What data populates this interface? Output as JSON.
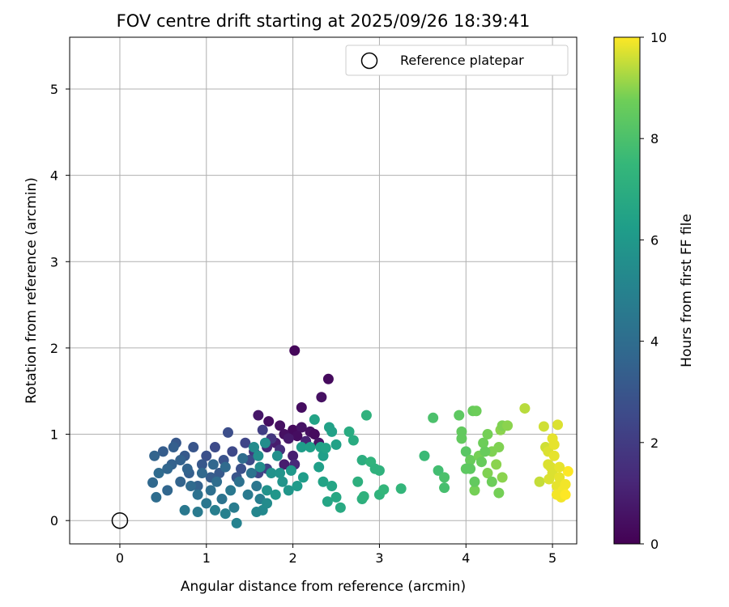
{
  "chart_data": {
    "type": "scatter",
    "title": "FOV centre drift starting at 2025/09/26 18:39:41",
    "xlabel": "Angular distance from reference (arcmin)",
    "ylabel": "Rotation from reference (arcmin)",
    "xlim": [
      -0.58,
      5.28
    ],
    "ylim": [
      -0.27,
      5.6
    ],
    "xticks": [
      0,
      1,
      2,
      3,
      4,
      5
    ],
    "yticks": [
      0,
      1,
      2,
      3,
      4,
      5
    ],
    "grid": true,
    "legend": {
      "position": "top-right",
      "label": "Reference platepar"
    },
    "reference_point": {
      "x": 0,
      "y": 0
    },
    "colorbar": {
      "label": "Hours from first FF file",
      "range": [
        0,
        10
      ],
      "ticks": [
        0,
        2,
        4,
        6,
        8,
        10
      ],
      "colormap": "viridis"
    },
    "series": [
      {
        "points": [
          [
            2.02,
            1.97
          ],
          [
            2.41,
            1.64
          ],
          [
            2.33,
            1.43
          ],
          [
            2.1,
            1.31
          ],
          [
            1.6,
            1.22
          ],
          [
            1.72,
            1.15
          ],
          [
            1.85,
            1.1
          ],
          [
            2.0,
            1.05
          ],
          [
            2.1,
            1.08
          ],
          [
            2.2,
            1.03
          ],
          [
            1.9,
            1.0
          ],
          [
            2.05,
            0.98
          ],
          [
            2.25,
            1.0
          ],
          [
            1.95,
            0.95
          ],
          [
            1.8,
            0.9
          ],
          [
            1.7,
            0.85
          ],
          [
            2.3,
            0.9
          ],
          [
            2.0,
            0.75
          ],
          [
            1.9,
            0.65
          ],
          [
            2.02,
            0.65
          ],
          [
            1.75,
            0.95
          ],
          [
            1.85,
            0.82
          ],
          [
            1.65,
            1.05
          ],
          [
            2.15,
            0.92
          ],
          [
            1.55,
            0.8
          ],
          [
            1.6,
            0.55
          ],
          [
            1.5,
            0.7
          ],
          [
            1.7,
            0.6
          ],
          [
            1.45,
            0.9
          ],
          [
            1.4,
            0.6
          ],
          [
            1.3,
            0.8
          ],
          [
            1.35,
            0.5
          ],
          [
            1.25,
            1.02
          ],
          [
            1.2,
            0.7
          ],
          [
            1.1,
            0.85
          ],
          [
            1.15,
            0.55
          ],
          [
            1.0,
            0.75
          ],
          [
            1.05,
            0.5
          ],
          [
            0.95,
            0.65
          ],
          [
            0.9,
            0.4
          ],
          [
            0.85,
            0.85
          ],
          [
            0.8,
            0.55
          ],
          [
            0.75,
            0.75
          ],
          [
            0.7,
            0.45
          ],
          [
            0.65,
            0.9
          ],
          [
            0.6,
            0.65
          ],
          [
            0.55,
            0.35
          ],
          [
            0.5,
            0.8
          ],
          [
            0.45,
            0.55
          ],
          [
            0.4,
            0.75
          ],
          [
            0.38,
            0.44
          ],
          [
            0.42,
            0.27
          ],
          [
            0.55,
            0.6
          ],
          [
            0.62,
            0.85
          ],
          [
            0.7,
            0.7
          ],
          [
            0.78,
            0.6
          ],
          [
            0.82,
            0.4
          ],
          [
            0.9,
            0.3
          ],
          [
            0.95,
            0.55
          ],
          [
            1.0,
            0.2
          ],
          [
            1.05,
            0.35
          ],
          [
            1.08,
            0.65
          ],
          [
            1.12,
            0.45
          ],
          [
            1.18,
            0.25
          ],
          [
            1.22,
            0.62
          ],
          [
            1.28,
            0.35
          ],
          [
            1.32,
            0.15
          ],
          [
            1.38,
            0.45
          ],
          [
            1.42,
            0.72
          ],
          [
            1.48,
            0.3
          ],
          [
            1.52,
            0.55
          ],
          [
            1.58,
            0.4
          ],
          [
            1.62,
            0.25
          ],
          [
            0.75,
            0.12
          ],
          [
            0.9,
            0.1
          ],
          [
            1.1,
            0.12
          ],
          [
            1.22,
            0.08
          ],
          [
            1.35,
            -0.03
          ],
          [
            1.55,
            0.85
          ],
          [
            1.6,
            0.75
          ],
          [
            1.68,
            0.9
          ],
          [
            1.75,
            0.55
          ],
          [
            1.82,
            0.75
          ],
          [
            1.88,
            0.45
          ],
          [
            1.95,
            0.35
          ],
          [
            1.62,
            0.62
          ],
          [
            1.7,
            0.35
          ],
          [
            1.8,
            0.3
          ],
          [
            1.85,
            0.55
          ],
          [
            1.65,
            0.12
          ],
          [
            1.58,
            0.1
          ],
          [
            1.7,
            0.2
          ],
          [
            1.98,
            0.58
          ],
          [
            2.05,
            0.4
          ],
          [
            2.12,
            0.5
          ],
          [
            2.1,
            0.85
          ],
          [
            2.2,
            0.85
          ],
          [
            2.25,
            1.17
          ],
          [
            2.3,
            0.62
          ],
          [
            2.32,
            0.85
          ],
          [
            2.35,
            0.75
          ],
          [
            2.38,
            0.84
          ],
          [
            2.42,
            1.08
          ],
          [
            2.45,
            1.03
          ],
          [
            2.5,
            0.88
          ],
          [
            2.35,
            0.45
          ],
          [
            2.4,
            0.22
          ],
          [
            2.45,
            0.4
          ],
          [
            2.5,
            0.27
          ],
          [
            2.55,
            0.15
          ],
          [
            2.65,
            1.03
          ],
          [
            2.7,
            0.93
          ],
          [
            2.8,
            0.7
          ],
          [
            2.75,
            0.45
          ],
          [
            2.8,
            0.25
          ],
          [
            2.82,
            0.28
          ],
          [
            2.85,
            1.22
          ],
          [
            2.9,
            0.68
          ],
          [
            2.95,
            0.6
          ],
          [
            3.0,
            0.58
          ],
          [
            3.0,
            0.3
          ],
          [
            3.05,
            0.36
          ],
          [
            3.25,
            0.37
          ],
          [
            3.52,
            0.75
          ],
          [
            3.62,
            1.19
          ],
          [
            3.68,
            0.58
          ],
          [
            3.75,
            0.5
          ],
          [
            3.75,
            0.38
          ],
          [
            3.92,
            1.22
          ],
          [
            3.95,
            1.03
          ],
          [
            3.95,
            0.95
          ],
          [
            4.0,
            0.8
          ],
          [
            4.05,
            0.7
          ],
          [
            4.05,
            0.6
          ],
          [
            4.08,
            1.27
          ],
          [
            4.12,
            1.27
          ],
          [
            4.1,
            0.35
          ],
          [
            4.15,
            0.75
          ],
          [
            4.2,
            0.9
          ],
          [
            4.25,
            1.0
          ],
          [
            4.25,
            0.55
          ],
          [
            4.3,
            0.8
          ],
          [
            4.35,
            0.65
          ],
          [
            4.38,
            0.85
          ],
          [
            4.38,
            0.32
          ],
          [
            4.4,
            1.05
          ],
          [
            4.42,
            1.1
          ],
          [
            4.42,
            0.5
          ],
          [
            4.48,
            1.1
          ],
          [
            4.3,
            0.45
          ],
          [
            4.18,
            0.68
          ],
          [
            4.1,
            0.45
          ],
          [
            4.0,
            0.6
          ],
          [
            4.22,
            0.8
          ],
          [
            4.68,
            1.3
          ],
          [
            4.85,
            0.45
          ],
          [
            4.9,
            1.09
          ],
          [
            4.92,
            0.85
          ],
          [
            4.95,
            0.8
          ],
          [
            4.95,
            0.65
          ],
          [
            5.0,
            0.95
          ],
          [
            5.0,
            0.55
          ],
          [
            5.02,
            0.75
          ],
          [
            5.05,
            0.4
          ],
          [
            5.05,
            0.3
          ],
          [
            5.06,
            1.11
          ],
          [
            5.08,
            0.5
          ],
          [
            5.1,
            0.27
          ],
          [
            5.12,
            0.35
          ],
          [
            5.15,
            0.3
          ],
          [
            5.15,
            0.42
          ],
          [
            5.18,
            0.57
          ],
          [
            4.98,
            0.62
          ],
          [
            5.02,
            0.88
          ],
          [
            5.08,
            0.62
          ],
          [
            4.96,
            0.48
          ]
        ],
        "colors": [
          0.2,
          0.3,
          0.5,
          0.4,
          0.7,
          0.4,
          0.5,
          0.3,
          0.6,
          0.5,
          0.5,
          0.4,
          0.3,
          0.8,
          0.9,
          1.2,
          0.6,
          1.0,
          0.9,
          1.3,
          1.8,
          1.5,
          2.1,
          1.1,
          1.9,
          2.3,
          2.6,
          2.2,
          2.4,
          2.8,
          2.5,
          3.0,
          2.7,
          2.9,
          2.6,
          3.2,
          2.8,
          3.3,
          3.1,
          3.5,
          3.0,
          3.4,
          3.2,
          3.6,
          3.1,
          3.5,
          3.7,
          3.3,
          3.9,
          3.6,
          3.8,
          4.0,
          3.7,
          3.4,
          3.5,
          3.6,
          3.9,
          4.2,
          3.8,
          4.4,
          4.1,
          3.7,
          4.0,
          4.3,
          3.9,
          4.5,
          4.7,
          4.2,
          4.0,
          4.6,
          4.3,
          4.4,
          4.8,
          4.5,
          4.6,
          4.8,
          4.9,
          5.0,
          5.4,
          5.6,
          5.5,
          5.7,
          5.6,
          5.8,
          5.9,
          5.5,
          5.7,
          5.9,
          5.8,
          5.3,
          5.2,
          5.4,
          6.0,
          6.1,
          6.2,
          6.2,
          6.3,
          6.5,
          6.3,
          6.4,
          6.3,
          6.5,
          6.4,
          6.4,
          6.4,
          6.5,
          6.6,
          6.6,
          6.7,
          6.8,
          6.9,
          6.9,
          7.0,
          7.1,
          7.1,
          7.2,
          7.2,
          7.3,
          7.2,
          7.2,
          7.3,
          7.4,
          7.4,
          7.6,
          8.0,
          7.8,
          8.0,
          7.9,
          8.4,
          8.5,
          8.5,
          8.3,
          8.6,
          8.4,
          8.6,
          8.7,
          8.8,
          8.8,
          8.7,
          8.8,
          8.9,
          8.9,
          9.0,
          8.9,
          8.8,
          9.0,
          8.9,
          9.0,
          9.0,
          8.7,
          8.6,
          8.5,
          8.4,
          8.6,
          9.4,
          9.5,
          9.6,
          9.6,
          9.7,
          9.7,
          9.8,
          9.7,
          9.8,
          9.8,
          9.9,
          9.7,
          9.8,
          9.9,
          9.9,
          10.0,
          9.9,
          10.0,
          9.7,
          9.8,
          9.8,
          9.7
        ]
      }
    ]
  }
}
